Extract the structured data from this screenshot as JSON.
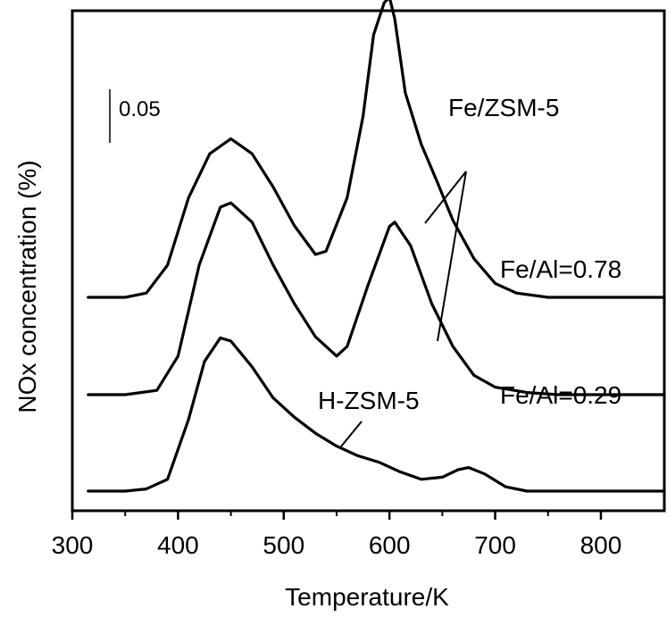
{
  "chart_data": {
    "type": "line",
    "xlabel": "Temperature/K",
    "ylabel": "NOx concentration (%)",
    "xlim": [
      300,
      860
    ],
    "x_ticks": [
      300,
      400,
      500,
      600,
      700,
      800
    ],
    "scale_bar_label": "0.05",
    "scale_bar_value": 0.05,
    "grid": false,
    "series": [
      {
        "name": "Fe/Al=0.78",
        "x": [
          315,
          350,
          370,
          390,
          410,
          430,
          450,
          470,
          490,
          510,
          530,
          540,
          560,
          575,
          585,
          595,
          600,
          605,
          615,
          630,
          645,
          660,
          680,
          700,
          720,
          750,
          800,
          860
        ],
        "y": [
          0.0,
          0.0,
          0.004,
          0.03,
          0.093,
          0.134,
          0.148,
          0.134,
          0.103,
          0.067,
          0.04,
          0.043,
          0.093,
          0.169,
          0.245,
          0.275,
          0.28,
          0.26,
          0.191,
          0.143,
          0.108,
          0.072,
          0.036,
          0.013,
          0.004,
          0.0,
          0.0,
          0.0
        ]
      },
      {
        "name": "Fe/Al=0.29",
        "x": [
          315,
          350,
          380,
          400,
          420,
          440,
          450,
          470,
          490,
          510,
          530,
          550,
          560,
          580,
          600,
          605,
          620,
          640,
          660,
          680,
          700,
          730,
          760,
          800,
          860
        ],
        "y": [
          0.0,
          0.0,
          0.004,
          0.036,
          0.121,
          0.175,
          0.179,
          0.161,
          0.121,
          0.085,
          0.054,
          0.036,
          0.045,
          0.103,
          0.157,
          0.161,
          0.139,
          0.085,
          0.045,
          0.018,
          0.007,
          0.002,
          0.0,
          0.0,
          0.0
        ]
      },
      {
        "name": "H-ZSM-5",
        "x": [
          315,
          350,
          370,
          390,
          410,
          425,
          440,
          450,
          470,
          490,
          510,
          530,
          550,
          570,
          590,
          610,
          630,
          650,
          665,
          675,
          690,
          710,
          730,
          760,
          800,
          860
        ],
        "y": [
          0.0,
          0.0,
          0.002,
          0.011,
          0.067,
          0.121,
          0.143,
          0.14,
          0.116,
          0.087,
          0.069,
          0.054,
          0.042,
          0.033,
          0.027,
          0.018,
          0.011,
          0.013,
          0.02,
          0.022,
          0.016,
          0.004,
          0.0,
          0.0,
          0.0,
          0.0
        ]
      }
    ],
    "annotations": [
      "Fe/ZSM-5",
      "H-ZSM-5",
      "Fe/Al=0.78",
      "Fe/Al=0.29"
    ]
  }
}
